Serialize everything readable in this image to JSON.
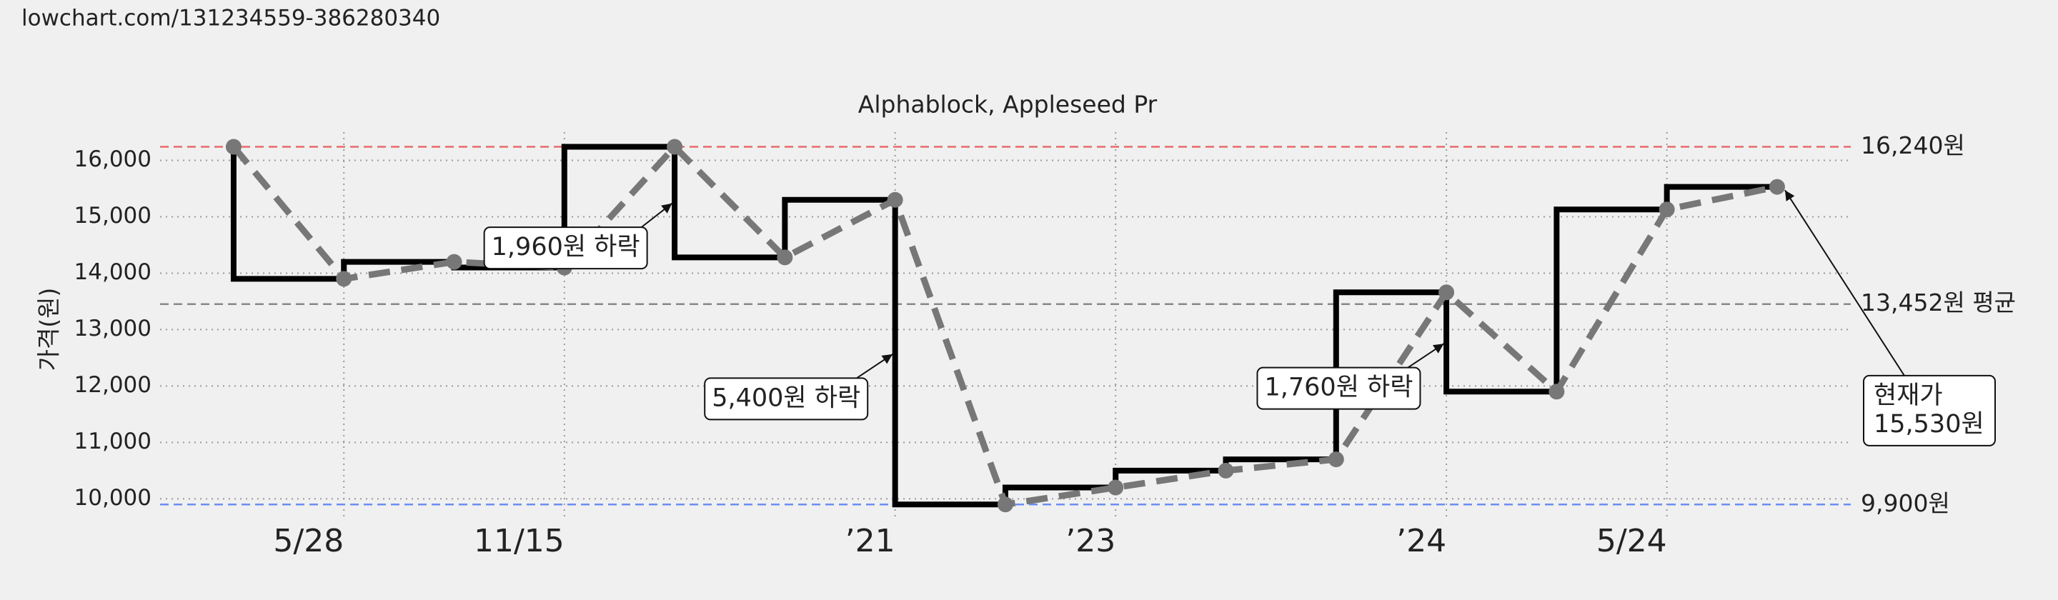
{
  "chart_data": {
    "type": "line",
    "source": "lowchart.com/131234559-386280340",
    "title": "Alphablock, Appleseed Pr",
    "y_label": "가격(원)",
    "categories": [
      null,
      "5/28",
      null,
      "11/15",
      null,
      null,
      "’21",
      null,
      "’23",
      null,
      null,
      "’24",
      null,
      "5/24",
      null
    ],
    "values": [
      16240,
      13900,
      14200,
      14100,
      16240,
      14280,
      15300,
      9900,
      10200,
      10500,
      10700,
      13660,
      11900,
      15130,
      15530
    ],
    "line_color": "#000000",
    "marker_color": "#777777",
    "ylim": [
      9650,
      16500
    ],
    "yticks": [
      {
        "value": 10000,
        "label": "10,000"
      },
      {
        "value": 11000,
        "label": "11,000"
      },
      {
        "value": 12000,
        "label": "12,000"
      },
      {
        "value": 13000,
        "label": "13,000"
      },
      {
        "value": 14000,
        "label": "14,000"
      },
      {
        "value": 15000,
        "label": "15,000"
      },
      {
        "value": 16000,
        "label": "16,000"
      }
    ],
    "grid": true,
    "reference_lines": [
      {
        "value": 16240,
        "label": "16,240원",
        "color": "#e86a6a"
      },
      {
        "value": 13452,
        "label": "13,452원 평균",
        "color": "#888888"
      },
      {
        "value": 9900,
        "label": "9,900원",
        "color": "#6b8ef0"
      }
    ],
    "annotations": [
      {
        "lines": [
          "1,960원 하락"
        ]
      },
      {
        "lines": [
          "5,400원 하락"
        ]
      },
      {
        "lines": [
          "1,760원 하락"
        ]
      },
      {
        "lines": [
          "현재가",
          "15,530원"
        ]
      }
    ]
  }
}
